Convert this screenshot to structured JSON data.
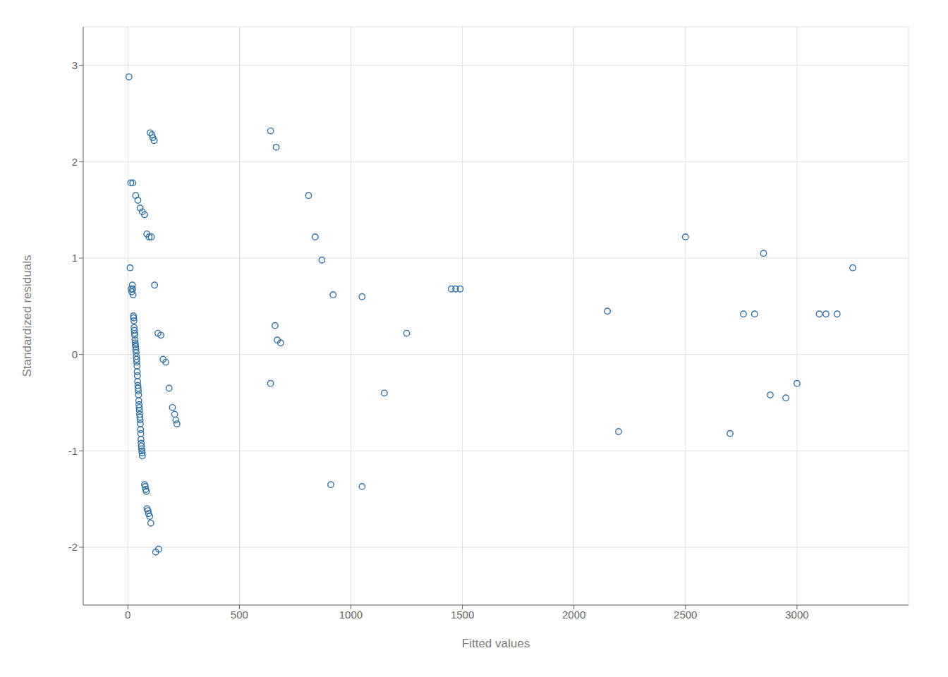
{
  "chart_data": {
    "type": "scatter",
    "xlabel": "Fitted values",
    "ylabel": "Standardized residuals",
    "xlim": [
      -200,
      3500
    ],
    "ylim": [
      -2.6,
      3.4
    ],
    "xticks": [
      0,
      500,
      1000,
      1500,
      2000,
      2500,
      3000
    ],
    "yticks": [
      -2,
      -1,
      0,
      1,
      2,
      3
    ],
    "grid": true,
    "color": "#3472a8",
    "x": [
      5,
      10,
      15,
      18,
      20,
      22,
      23,
      25,
      26,
      27,
      28,
      29,
      30,
      31,
      32,
      33,
      34,
      35,
      36,
      37,
      38,
      39,
      40,
      41,
      42,
      43,
      44,
      45,
      46,
      47,
      48,
      49,
      50,
      51,
      52,
      53,
      54,
      55,
      56,
      57,
      58,
      59,
      60,
      61,
      62,
      63,
      64,
      65,
      13,
      22,
      35,
      45,
      55,
      65,
      75,
      85,
      95,
      105,
      120,
      135,
      148,
      158,
      170,
      185,
      200,
      210,
      215,
      220,
      100,
      108,
      112,
      118,
      75,
      78,
      80,
      83,
      86,
      90,
      93,
      98,
      103,
      125,
      138,
      640,
      665,
      640,
      660,
      670,
      685,
      810,
      840,
      870,
      920,
      1050,
      1250,
      1450,
      1470,
      1490,
      1150,
      910,
      1050,
      2150,
      2200,
      2500,
      2700,
      2760,
      2810,
      2850,
      2880,
      2950,
      3000,
      3100,
      3130,
      3180,
      3250
    ],
    "values": [
      2.88,
      0.9,
      0.68,
      0.65,
      0.72,
      0.68,
      0.62,
      0.4,
      0.38,
      0.35,
      0.28,
      0.25,
      0.22,
      0.2,
      0.15,
      0.12,
      0.1,
      0.08,
      0.05,
      0.02,
      -0.02,
      -0.05,
      -0.08,
      -0.12,
      -0.18,
      -0.22,
      -0.28,
      -0.32,
      -0.35,
      -0.38,
      -0.42,
      -0.48,
      -0.52,
      -0.55,
      -0.58,
      -0.62,
      -0.65,
      -0.68,
      -0.72,
      -0.78,
      -0.82,
      -0.88,
      -0.92,
      -0.95,
      -0.98,
      -1.0,
      -1.02,
      -1.05,
      1.78,
      1.78,
      1.65,
      1.6,
      1.52,
      1.48,
      1.45,
      1.25,
      1.22,
      1.22,
      0.72,
      0.22,
      0.2,
      -0.05,
      -0.08,
      -0.35,
      -0.55,
      -0.62,
      -0.68,
      -0.72,
      2.3,
      2.28,
      2.25,
      2.22,
      -1.35,
      -1.37,
      -1.4,
      -1.42,
      -1.6,
      -1.62,
      -1.65,
      -1.68,
      -1.75,
      -2.05,
      -2.02,
      2.32,
      2.15,
      -0.3,
      0.3,
      0.15,
      0.12,
      1.65,
      1.22,
      0.98,
      0.62,
      0.6,
      0.22,
      0.68,
      0.68,
      0.68,
      -0.4,
      -1.35,
      -1.37,
      0.45,
      -0.8,
      1.22,
      -0.82,
      0.42,
      0.42,
      1.05,
      -0.42,
      -0.45,
      -0.3,
      0.42,
      0.42,
      0.42,
      0.9
    ]
  }
}
